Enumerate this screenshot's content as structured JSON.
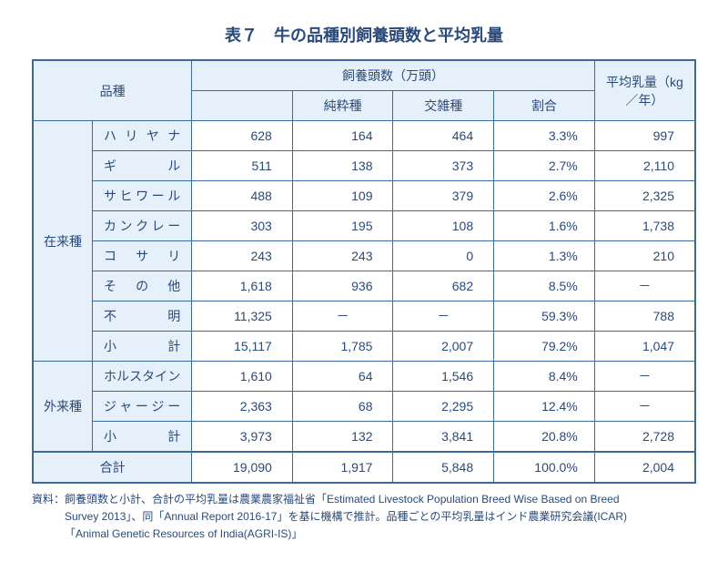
{
  "title": "表７　牛の品種別飼養頭数と平均乳量",
  "headers": {
    "breed": "品種",
    "pop": "飼養頭数（万頭）",
    "pure": "純粋種",
    "cross": "交雑種",
    "ratio": "割合",
    "milk": "平均乳量（kg ／年）"
  },
  "groups": {
    "native": "在来種",
    "exotic": "外来種",
    "total": "合計"
  },
  "rows": {
    "r0": {
      "name": "ハリヤナ",
      "total": "628",
      "pure": "164",
      "cross": "464",
      "ratio": "3.3%",
      "milk": "997"
    },
    "r1": {
      "name": "ギル",
      "total": "511",
      "pure": "138",
      "cross": "373",
      "ratio": "2.7%",
      "milk": "2,110"
    },
    "r2": {
      "name": "サヒワール",
      "total": "488",
      "pure": "109",
      "cross": "379",
      "ratio": "2.6%",
      "milk": "2,325"
    },
    "r3": {
      "name": "カンクレー",
      "total": "303",
      "pure": "195",
      "cross": "108",
      "ratio": "1.6%",
      "milk": "1,738"
    },
    "r4": {
      "name": "コサリ",
      "total": "243",
      "pure": "243",
      "cross": "0",
      "ratio": "1.3%",
      "milk": "210"
    },
    "r5": {
      "name": "その他",
      "total": "1,618",
      "pure": "936",
      "cross": "682",
      "ratio": "8.5%",
      "milk": "－"
    },
    "r6": {
      "name": "不明",
      "total": "11,325",
      "pure": "－",
      "cross": "－",
      "ratio": "59.3%",
      "milk": "788"
    },
    "r7": {
      "name": "小計",
      "total": "15,117",
      "pure": "1,785",
      "cross": "2,007",
      "ratio": "79.2%",
      "milk": "1,047"
    },
    "r8": {
      "name": "ホルスタイン",
      "total": "1,610",
      "pure": "64",
      "cross": "1,546",
      "ratio": "8.4%",
      "milk": "－"
    },
    "r9": {
      "name": "ジャージー",
      "total": "2,363",
      "pure": "68",
      "cross": "2,295",
      "ratio": "12.4%",
      "milk": "－"
    },
    "r10": {
      "name": "小計",
      "total": "3,973",
      "pure": "132",
      "cross": "3,841",
      "ratio": "20.8%",
      "milk": "2,728"
    },
    "r11": {
      "total": "19,090",
      "pure": "1,917",
      "cross": "5,848",
      "ratio": "100.0%",
      "milk": "2,004"
    }
  },
  "footnote": {
    "line1": "資料：飼養頭数と小計、合計の平均乳量は農業農家福祉省「Estimated Livestock Population Breed Wise Based on Breed",
    "line2": "Survey 2013」、同「Annual Report 2016-17」を基に機構で推計。品種ごとの平均乳量はインド農業研究会議(ICAR)",
    "line3": "「Animal Genetic Resources of India(AGRI-IS)」"
  }
}
